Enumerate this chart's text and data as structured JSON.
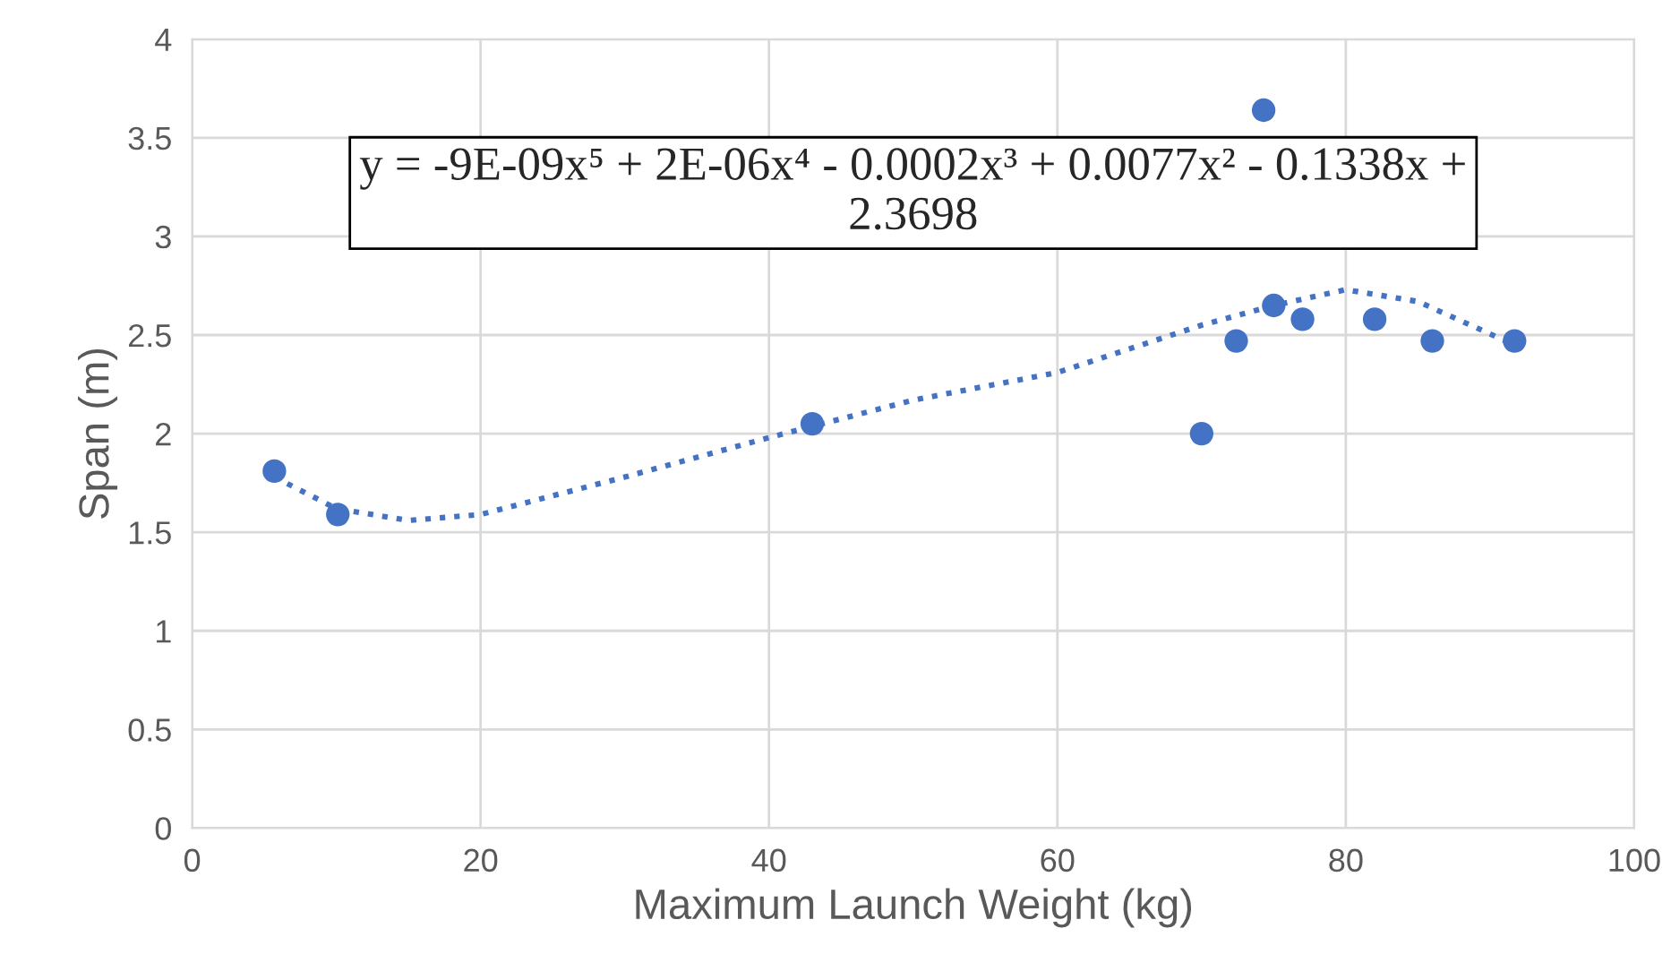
{
  "chart_data": {
    "type": "scatter",
    "xlabel": "Maximum Launch Weight (kg)",
    "ylabel": "Span (m)",
    "xlim": [
      0,
      100
    ],
    "xticks": [
      0,
      20,
      40,
      60,
      80,
      100
    ],
    "ylim": [
      0,
      4
    ],
    "yticks": [
      0,
      0.5,
      1,
      1.5,
      2,
      2.5,
      3,
      3.5,
      4
    ],
    "grid": true,
    "series": [
      {
        "color": "#4472c4",
        "marker": "circle",
        "x": [
          5.7,
          10.1,
          43,
          70,
          72.4,
          74.3,
          75,
          77,
          82,
          86,
          91.7
        ],
        "values": [
          1.81,
          1.59,
          2.05,
          2.0,
          2.47,
          3.64,
          2.65,
          2.58,
          2.58,
          2.47,
          2.47
        ]
      },
      {
        "type": "line",
        "color": "#4472c4",
        "marker": "none",
        "line_style": "dotted",
        "x": [
          5.7,
          10,
          15,
          20,
          30,
          40,
          50,
          60,
          70,
          75,
          80,
          85,
          91.7
        ],
        "values": [
          1.78,
          1.62,
          1.56,
          1.59,
          1.78,
          1.98,
          2.17,
          2.31,
          2.55,
          2.65,
          2.73,
          2.67,
          2.45
        ]
      }
    ],
    "annotations": [
      "y = -9E-09x⁵ + 2E-06x⁴ - 0.0002x³ + 0.0077x² - 0.1338x +\n2.3698"
    ]
  }
}
